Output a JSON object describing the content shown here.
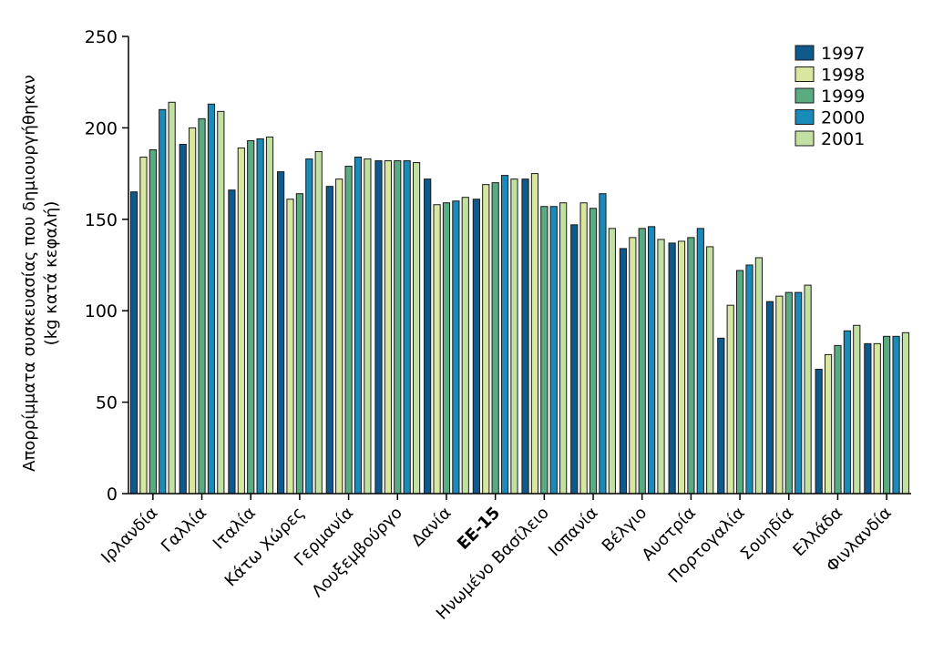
{
  "chart_data": {
    "type": "bar",
    "ylabel_line1": "Απορρίμματα συσκευασίας που δημιουργήθηκαν",
    "ylabel_line2": "(kg κατά κεφαλή)",
    "ylim": [
      0,
      250
    ],
    "yticks": [
      0,
      50,
      100,
      150,
      200,
      250
    ],
    "grid": false,
    "legend_placement": "top-right",
    "categories": [
      "Ιρλανδία",
      "Γαλλία",
      "Ιταλία",
      "Κάτω Χώρες",
      "Γερμανία",
      "Λουξεμβούργο",
      "Δανία",
      "ΕΕ-15",
      "Ηνωμένο Βασίλειο",
      "Ισπανία",
      "Βέλγιο",
      "Αυστρία",
      "Πορτογαλία",
      "Σουηδία",
      "Ελλάδα",
      "Φινλανδία"
    ],
    "bold_categories": [
      "ΕΕ-15"
    ],
    "series": [
      {
        "name": "1997",
        "color": "#0f5a8c",
        "values": [
          165,
          191,
          166,
          176,
          168,
          182,
          172,
          161,
          172,
          147,
          134,
          137,
          85,
          105,
          68,
          82
        ]
      },
      {
        "name": "1998",
        "color": "#d8e6a0",
        "values": [
          184,
          200,
          189,
          161,
          172,
          182,
          158,
          169,
          175,
          159,
          140,
          138,
          103,
          108,
          76,
          82
        ]
      },
      {
        "name": "1999",
        "color": "#5aaa82",
        "values": [
          188,
          205,
          193,
          164,
          179,
          182,
          159,
          170,
          157,
          156,
          145,
          140,
          122,
          110,
          81,
          86
        ]
      },
      {
        "name": "2000",
        "color": "#1a8ab8",
        "values": [
          210,
          213,
          194,
          183,
          184,
          182,
          160,
          174,
          157,
          164,
          146,
          145,
          125,
          110,
          89,
          86
        ]
      },
      {
        "name": "2001",
        "color": "#c2e0a2",
        "values": [
          214,
          209,
          195,
          187,
          183,
          181,
          162,
          172,
          159,
          145,
          139,
          135,
          129,
          114,
          92,
          88
        ]
      }
    ]
  }
}
